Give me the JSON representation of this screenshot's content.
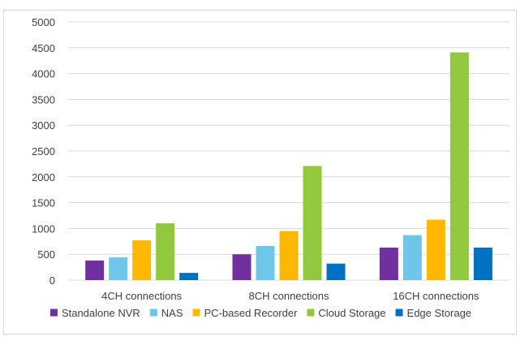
{
  "chart_data": {
    "type": "bar",
    "title": "",
    "xlabel": "",
    "ylabel": "",
    "categories": [
      "4CH connections",
      "8CH connections",
      "16CH connections"
    ],
    "ylim": [
      0,
      5000
    ],
    "yticks": [
      0,
      500,
      1000,
      1500,
      2000,
      2500,
      3000,
      3500,
      4000,
      4500,
      5000
    ],
    "grid": true,
    "legend_position": "bottom",
    "series": [
      {
        "name": "Standalone NVR",
        "color": "#7030A0",
        "values": [
          380,
          500,
          630
        ]
      },
      {
        "name": "NAS",
        "color": "#6EC6EA",
        "values": [
          440,
          660,
          870
        ]
      },
      {
        "name": "PC-based Recorder",
        "color": "#FFB800",
        "values": [
          770,
          950,
          1170
        ]
      },
      {
        "name": "Cloud Storage",
        "color": "#92C83E",
        "values": [
          1100,
          2210,
          4410
        ]
      },
      {
        "name": "Edge Storage",
        "color": "#0070C0",
        "values": [
          140,
          320,
          630
        ]
      }
    ]
  }
}
